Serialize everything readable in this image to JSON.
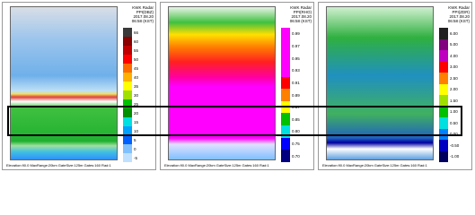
{
  "panels": [
    {
      "header": {
        "title": "KWK Radar",
        "product": "PPI(DBZ)",
        "date": "2017.08.20",
        "time": "06:58 (KST)"
      },
      "colorbar": {
        "labels": [
          "66",
          "60",
          "55",
          "50",
          "45",
          "40",
          "35",
          "30",
          "25",
          "20",
          "15",
          "10",
          "5",
          "0",
          "-5"
        ],
        "colors": [
          "#3a3a3a",
          "#8b0000",
          "#c00000",
          "#ff0000",
          "#ff6a00",
          "#ffb000",
          "#ffff00",
          "#a0e000",
          "#00c000",
          "#009000",
          "#00e0e0",
          "#00a0ff",
          "#0060ff",
          "#80c0ff",
          "#c0e0ff"
        ]
      },
      "footer": "Elevation:90.0  MaxRange:20km  GateSize:125m  Gates:160 Rad:1"
    },
    {
      "header": {
        "title": "KWK Radar",
        "product": "PPI(RHO)",
        "date": "2017.08.20",
        "time": "06:58 (KST)"
      },
      "colorbar": {
        "labels": [
          "0.99",
          "0.97",
          "0.95",
          "0.93",
          "0.91",
          "0.89",
          "0.87",
          "0.85",
          "0.80",
          "0.75",
          "0.70"
        ],
        "colors": [
          "#ff00ff",
          "#ff00ff",
          "#ff00ff",
          "#ff00ff",
          "#ff0000",
          "#ff8000",
          "#ffff00",
          "#00c000",
          "#00e0e0",
          "#0000ff",
          "#000080"
        ]
      },
      "footer": "Elevation:90.0  MaxRange:20km  GateSize:125m  Gates:160 Rad:1"
    },
    {
      "header": {
        "title": "KWK Radar",
        "product": "PPI(ZDR)",
        "date": "2017.08.20",
        "time": "06:58 (KST)"
      },
      "colorbar": {
        "labels": [
          "6.00",
          "5.00",
          "4.00",
          "3.00",
          "2.50",
          "2.00",
          "1.50",
          "1.00",
          "0.50",
          "0.00",
          "-0.50",
          "-1.00"
        ],
        "colors": [
          "#202020",
          "#800080",
          "#c000c0",
          "#ff0000",
          "#ff8000",
          "#ffff00",
          "#a0e000",
          "#00c000",
          "#00e0e0",
          "#0080ff",
          "#0000c0",
          "#000060"
        ]
      },
      "footer": "Elevation:90.0  MaxRange:20km  GateSize:125m  Gates:160 Rad:1"
    }
  ]
}
